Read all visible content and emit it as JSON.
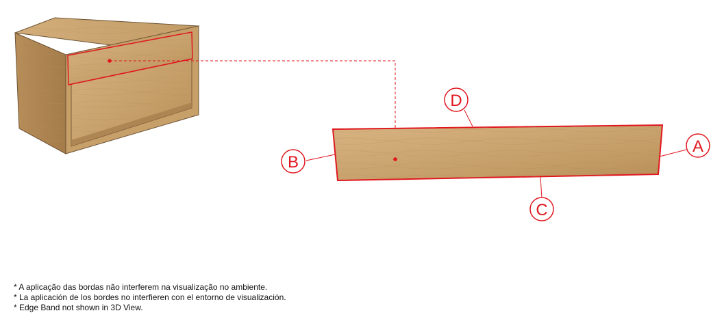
{
  "colors": {
    "accent": "#e0161e",
    "wood": "#c9a36e"
  },
  "edge_labels": {
    "a": "A",
    "b": "B",
    "c": "C",
    "d": "D"
  },
  "notes": [
    "* A aplicação das bordas não interferem na visualização no ambiente.",
    "* La aplicación de los bordes no interfieren con el entorno de visualización.",
    "* Edge Band not shown in 3D View."
  ]
}
